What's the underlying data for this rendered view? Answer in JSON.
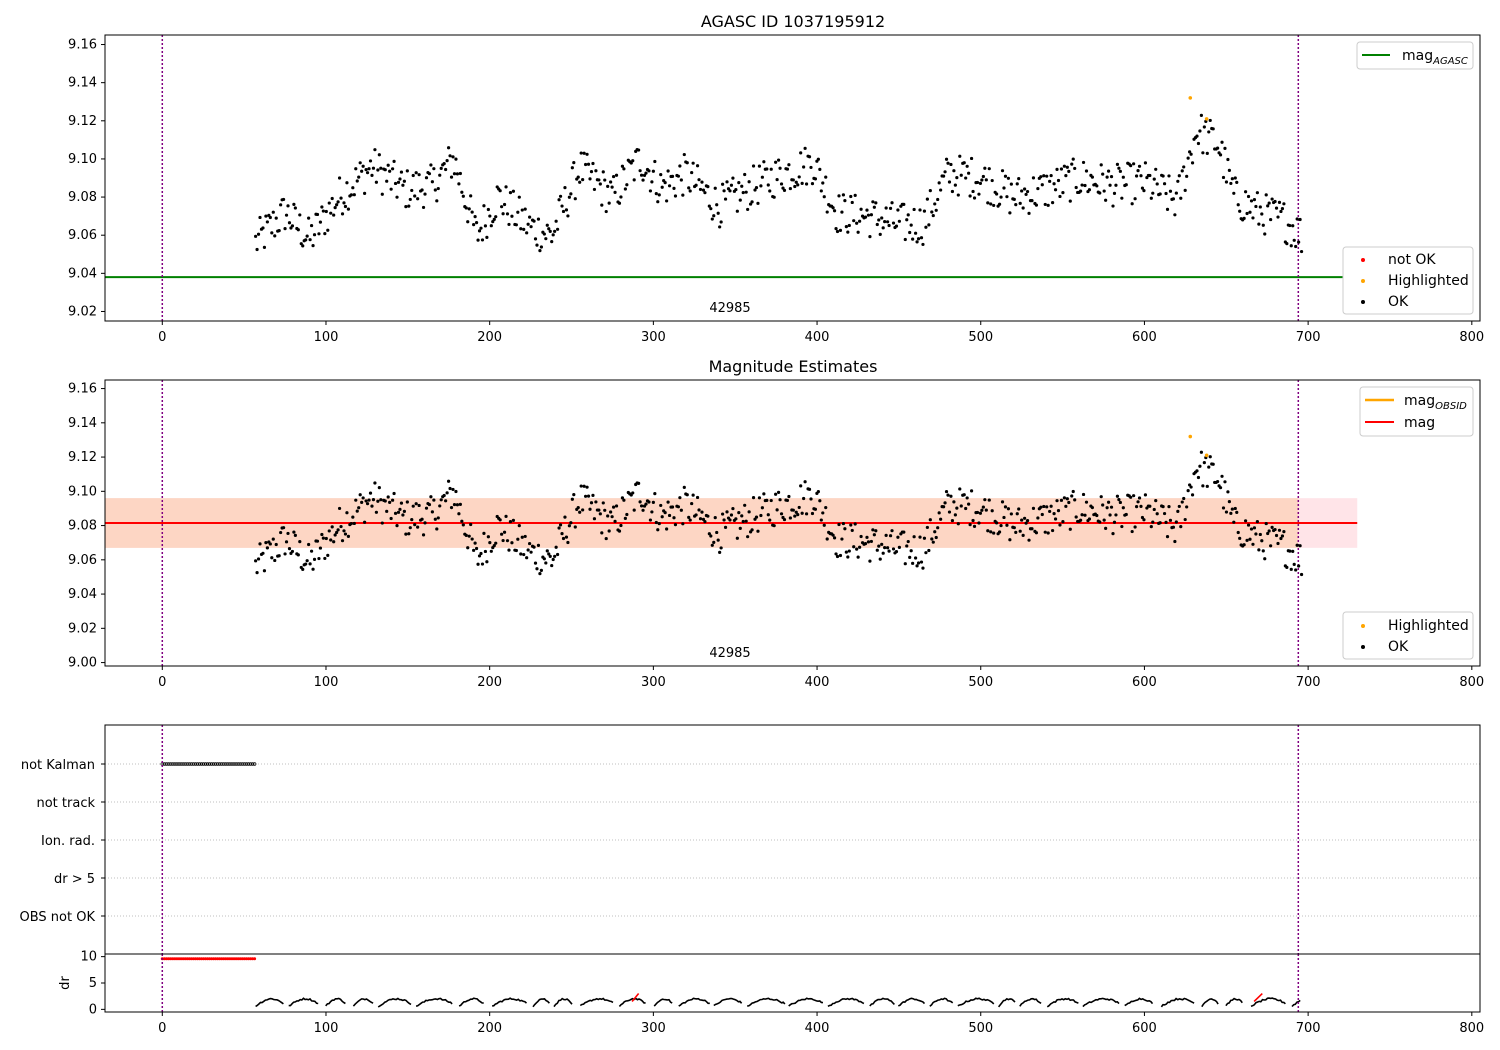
{
  "colors": {
    "ok": "#000000",
    "highlighted": "#ffa500",
    "not_ok": "#ff0000",
    "mag_agasc": "#008000",
    "mag_obsid": "#ffa500",
    "mag": "#ff0000",
    "obs_marker": "#800080",
    "band_outer": "#ffe4e8",
    "band_inner": "#fdd6c4"
  },
  "chart_data": [
    {
      "type": "scatter",
      "title": "AGASC ID 1037195912",
      "xlabel": "",
      "ylabel": "",
      "xlim": [
        -35,
        805
      ],
      "ylim": [
        9.015,
        9.165
      ],
      "xticks": [
        "0",
        "100",
        "200",
        "300",
        "400",
        "500",
        "600",
        "700",
        "800"
      ],
      "yticks": [
        "9.02",
        "9.04",
        "9.06",
        "9.08",
        "9.10",
        "9.12",
        "9.14",
        "9.16"
      ],
      "annotation": "42985",
      "obs_boundaries": [
        0,
        694
      ],
      "mag_agasc": 9.038,
      "legend_lines": [
        "mag_AGASC"
      ],
      "legend_points": [
        "not OK",
        "Highlighted",
        "OK"
      ],
      "highlighted": [
        [
          628,
          9.132
        ],
        [
          638,
          9.121
        ]
      ],
      "ok_series": {
        "x_range": [
          57,
          696
        ],
        "segments": [
          {
            "x": 57,
            "y": 9.056
          },
          {
            "x": 75,
            "y": 9.072
          },
          {
            "x": 90,
            "y": 9.058
          },
          {
            "x": 108,
            "y": 9.08
          },
          {
            "x": 128,
            "y": 9.096
          },
          {
            "x": 148,
            "y": 9.084
          },
          {
            "x": 165,
            "y": 9.086
          },
          {
            "x": 178,
            "y": 9.1
          },
          {
            "x": 192,
            "y": 9.06
          },
          {
            "x": 205,
            "y": 9.08
          },
          {
            "x": 225,
            "y": 9.064
          },
          {
            "x": 238,
            "y": 9.06
          },
          {
            "x": 255,
            "y": 9.095
          },
          {
            "x": 275,
            "y": 9.08
          },
          {
            "x": 292,
            "y": 9.1
          },
          {
            "x": 305,
            "y": 9.085
          },
          {
            "x": 320,
            "y": 9.092
          },
          {
            "x": 340,
            "y": 9.075
          },
          {
            "x": 360,
            "y": 9.085
          },
          {
            "x": 378,
            "y": 9.092
          },
          {
            "x": 398,
            "y": 9.098
          },
          {
            "x": 412,
            "y": 9.072
          },
          {
            "x": 430,
            "y": 9.07
          },
          {
            "x": 450,
            "y": 9.066
          },
          {
            "x": 465,
            "y": 9.066
          },
          {
            "x": 480,
            "y": 9.092
          },
          {
            "x": 500,
            "y": 9.09
          },
          {
            "x": 520,
            "y": 9.08
          },
          {
            "x": 540,
            "y": 9.084
          },
          {
            "x": 560,
            "y": 9.09
          },
          {
            "x": 580,
            "y": 9.086
          },
          {
            "x": 600,
            "y": 9.088
          },
          {
            "x": 620,
            "y": 9.078
          },
          {
            "x": 632,
            "y": 9.115
          },
          {
            "x": 645,
            "y": 9.108
          },
          {
            "x": 655,
            "y": 9.08
          },
          {
            "x": 670,
            "y": 9.072
          },
          {
            "x": 685,
            "y": 9.068
          },
          {
            "x": 696,
            "y": 9.06
          }
        ]
      }
    },
    {
      "type": "scatter",
      "title": "Magnitude Estimates",
      "xlabel": "",
      "ylabel": "",
      "xlim": [
        -35,
        805
      ],
      "ylim": [
        8.998,
        9.165
      ],
      "xticks": [
        "0",
        "100",
        "200",
        "300",
        "400",
        "500",
        "600",
        "700",
        "800"
      ],
      "yticks": [
        "9.00",
        "9.02",
        "9.04",
        "9.06",
        "9.08",
        "9.10",
        "9.12",
        "9.14",
        "9.16"
      ],
      "annotation": "42985",
      "obs_boundaries": [
        0,
        694
      ],
      "mag": 9.0815,
      "mag_obsid": 9.0815,
      "band_outer": {
        "x": [
          -35,
          730
        ],
        "y": [
          9.067,
          9.096
        ]
      },
      "band_inner": {
        "x": [
          -35,
          694
        ],
        "y": [
          9.067,
          9.096
        ]
      },
      "legend_lines": [
        "mag_OBSID",
        "mag"
      ],
      "legend_points": [
        "Highlighted",
        "OK"
      ],
      "highlighted": [
        [
          628,
          9.132
        ],
        [
          638,
          9.121
        ]
      ]
    },
    {
      "type": "scatter",
      "title": "",
      "xlabel": "",
      "ylabel": "",
      "xlim": [
        -35,
        805
      ],
      "categories": [
        "not Kalman",
        "not track",
        "Ion. rad.",
        "dr > 5",
        "OBS not OK"
      ],
      "flag_not_kalman_x": [
        0,
        57
      ],
      "obs_boundaries": [
        0,
        694
      ]
    },
    {
      "type": "line",
      "title": "",
      "xlabel": "",
      "ylabel": "dr",
      "xlim": [
        -35,
        805
      ],
      "ylim": [
        -0.5,
        10.5
      ],
      "xticks": [
        "0",
        "100",
        "200",
        "300",
        "400",
        "500",
        "600",
        "700",
        "800"
      ],
      "yticks": [
        "0",
        "5",
        "10"
      ],
      "not_ok_segment": {
        "x": [
          0,
          57
        ],
        "y": 9.6
      },
      "obs_boundaries": [
        0,
        694
      ]
    }
  ]
}
